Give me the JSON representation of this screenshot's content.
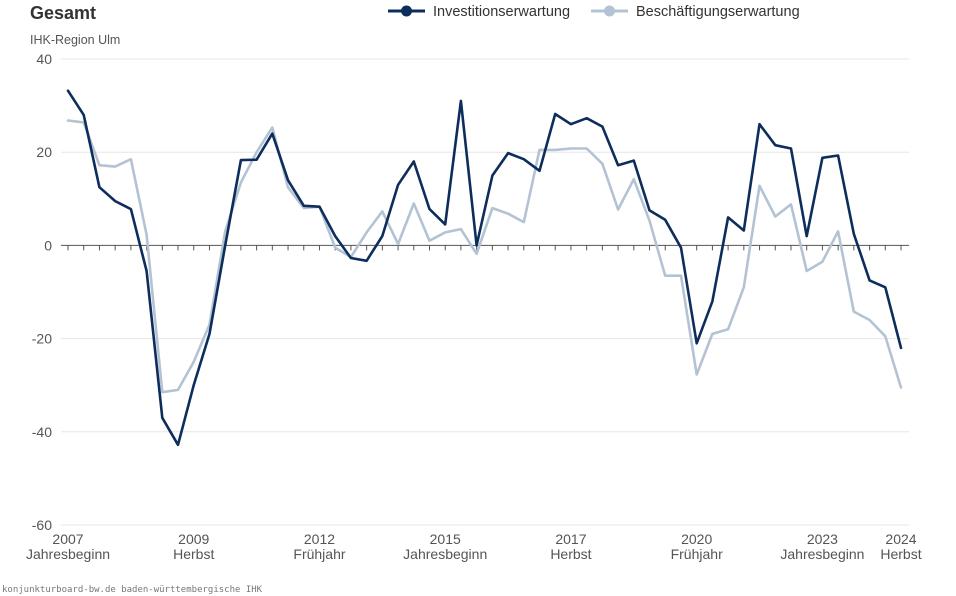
{
  "chart_data": {
    "type": "line",
    "title": "Gesamt",
    "subtitle": "IHK-Region Ulm",
    "ylim": [
      -60,
      40
    ],
    "y_ticks": [
      40,
      20,
      0,
      -20,
      -40,
      -60
    ],
    "grid": true,
    "legend_position": "top",
    "x_ticks": [
      {
        "year": "2007",
        "period": "Jahresbeginn",
        "index": 0
      },
      {
        "year": "2009",
        "period": "Herbst",
        "index": 8
      },
      {
        "year": "2012",
        "period": "Frühjahr",
        "index": 16
      },
      {
        "year": "2015",
        "period": "Jahresbeginn",
        "index": 24
      },
      {
        "year": "2017",
        "period": "Herbst",
        "index": 32
      },
      {
        "year": "2020",
        "period": "Frühjahr",
        "index": 40
      },
      {
        "year": "2023",
        "period": "Jahresbeginn",
        "index": 48
      },
      {
        "year": "2024",
        "period": "Herbst",
        "index": 53
      }
    ],
    "series": [
      {
        "name": "Investitionserwartung",
        "color": "#0d2d5c",
        "values": [
          33.2,
          28.0,
          12.5,
          9.5,
          7.8,
          -5.5,
          -37.0,
          -42.8,
          -30.0,
          -19.0,
          0.0,
          18.3,
          18.4,
          24.0,
          14.0,
          8.5,
          8.3,
          2.0,
          -2.7,
          -3.3,
          2.0,
          13.0,
          18.0,
          7.8,
          4.5,
          31.0,
          0.0,
          15.0,
          19.8,
          18.5,
          16.0,
          28.2,
          26.0,
          27.3,
          25.5,
          17.2,
          18.2,
          7.5,
          5.5,
          -0.5,
          -21.0,
          -12.0,
          6.0,
          3.2,
          26.0,
          21.5,
          20.8,
          2.0,
          18.8,
          19.3,
          2.5,
          -7.5,
          -9.0,
          -22.0
        ]
      },
      {
        "name": "Beschäftigungserwartung",
        "color": "#b3c3d3",
        "values": [
          26.8,
          26.4,
          17.2,
          16.9,
          18.5,
          2.3,
          -31.5,
          -31.0,
          -25.0,
          -17.0,
          3.0,
          13.5,
          20.0,
          25.3,
          12.5,
          8.0,
          8.3,
          -0.5,
          -2.5,
          2.8,
          7.3,
          0.3,
          9.0,
          1.0,
          2.8,
          3.5,
          -1.8,
          8.0,
          6.8,
          5.0,
          20.5,
          20.5,
          20.8,
          20.8,
          17.5,
          7.7,
          14.2,
          5.3,
          -6.5,
          -6.5,
          -27.7,
          -19.0,
          -18.0,
          -9.0,
          12.8,
          6.2,
          8.8,
          -5.5,
          -3.5,
          3.0,
          -14.2,
          -16.0,
          -19.5,
          -30.5
        ]
      }
    ]
  },
  "footer": {
    "source": "konjunkturboard-bw.de baden-württembergische IHK"
  }
}
